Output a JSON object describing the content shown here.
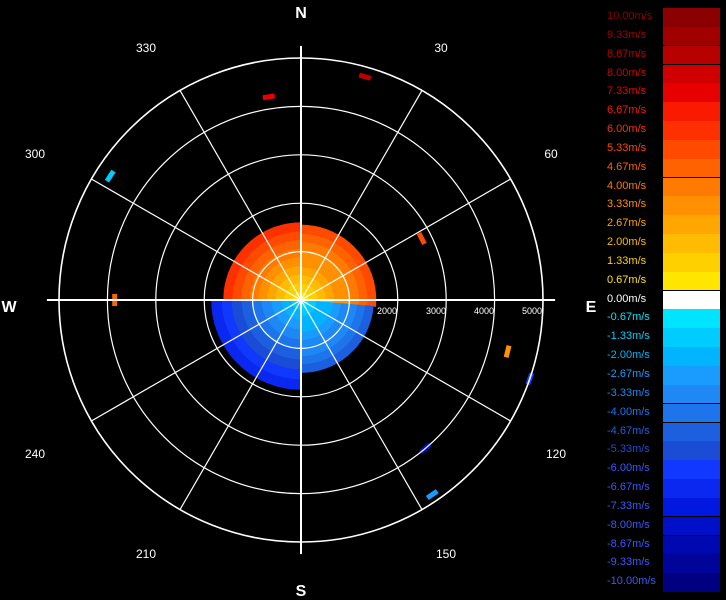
{
  "chart_data": {
    "type": "polar-radar-velocity",
    "cardinal_labels": [
      "N",
      "E",
      "S",
      "W"
    ],
    "azimuth_labels": [
      "30",
      "60",
      "120",
      "150",
      "210",
      "240",
      "300",
      "330"
    ],
    "range_labels": [
      "2000",
      "3000",
      "4000",
      "5000"
    ],
    "legend": [
      {
        "label": "10.00m/s",
        "color": "#8b0000"
      },
      {
        "label": "9.33m/s",
        "color": "#a00000"
      },
      {
        "label": "8.67m/s",
        "color": "#b80000"
      },
      {
        "label": "8.00m/s",
        "color": "#d00000"
      },
      {
        "label": "7.33m/s",
        "color": "#e60000"
      },
      {
        "label": "6.67m/s",
        "color": "#fa1a00"
      },
      {
        "label": "6.00m/s",
        "color": "#ff3000"
      },
      {
        "label": "5.33m/s",
        "color": "#ff4a00"
      },
      {
        "label": "4.67m/s",
        "color": "#ff6200"
      },
      {
        "label": "4.00m/s",
        "color": "#ff7a00"
      },
      {
        "label": "3.33m/s",
        "color": "#ff9000"
      },
      {
        "label": "2.67m/s",
        "color": "#ffa600"
      },
      {
        "label": "2.00m/s",
        "color": "#ffbc00"
      },
      {
        "label": "1.33m/s",
        "color": "#ffd000"
      },
      {
        "label": "0.67m/s",
        "color": "#ffe600"
      },
      {
        "label": "0.00m/s",
        "color": "#ffffff"
      },
      {
        "label": "-0.67m/s",
        "color": "#00e5ff"
      },
      {
        "label": "-1.33m/s",
        "color": "#00ccff"
      },
      {
        "label": "-2.00m/s",
        "color": "#00b4ff"
      },
      {
        "label": "-2.67m/s",
        "color": "#1a9cff"
      },
      {
        "label": "-3.33m/s",
        "color": "#1e88f5"
      },
      {
        "label": "-4.00m/s",
        "color": "#1e74eb"
      },
      {
        "label": "-4.67m/s",
        "color": "#1c60e0"
      },
      {
        "label": "-5.33m/s",
        "color": "#1a4cd6"
      },
      {
        "label": "-6.00m/s",
        "color": "#1038ff"
      },
      {
        "label": "-6.67m/s",
        "color": "#0a28f0"
      },
      {
        "label": "-7.33m/s",
        "color": "#0018e0"
      },
      {
        "label": "-8.00m/s",
        "color": "#0010c8"
      },
      {
        "label": "-8.67m/s",
        "color": "#0008b0"
      },
      {
        "label": "-9.33m/s",
        "color": "#000498"
      },
      {
        "label": "-10.00m/s",
        "color": "#000080"
      }
    ],
    "echoes": [
      {
        "az_from": 270,
        "az_to": 360,
        "r_from": 0,
        "r_to": 1600,
        "v_from": 0.67,
        "v_to": 6.0
      },
      {
        "az_from": 0,
        "az_to": 95,
        "r_from": 0,
        "r_to": 1550,
        "v_from": 0.67,
        "v_to": 5.33
      },
      {
        "az_from": 95,
        "az_to": 180,
        "r_from": 0,
        "r_to": 1500,
        "v_from": -0.67,
        "v_to": -4.67
      },
      {
        "az_from": 180,
        "az_to": 270,
        "r_from": 0,
        "r_to": 1850,
        "v_from": -0.67,
        "v_to": -6.67
      }
    ],
    "clutter": [
      {
        "az": 16,
        "r": 4800,
        "v": 8.67
      },
      {
        "az": 351,
        "r": 4250,
        "v": 7.33
      },
      {
        "az": 63,
        "r": 2800,
        "v": 5.33
      },
      {
        "az": 270,
        "r": 3850,
        "v": 4.67
      },
      {
        "az": 303,
        "r": 4700,
        "v": -1.33
      },
      {
        "az": 104,
        "r": 4400,
        "v": 3.33
      },
      {
        "az": 109,
        "r": 5000,
        "v": -6.0
      },
      {
        "az": 140,
        "r": 4000,
        "v": -8.0
      },
      {
        "az": 146,
        "r": 4850,
        "v": -2.67
      }
    ],
    "max_range": 5000,
    "ring_step": 1000,
    "radial_step_deg": 30,
    "grid": true
  }
}
